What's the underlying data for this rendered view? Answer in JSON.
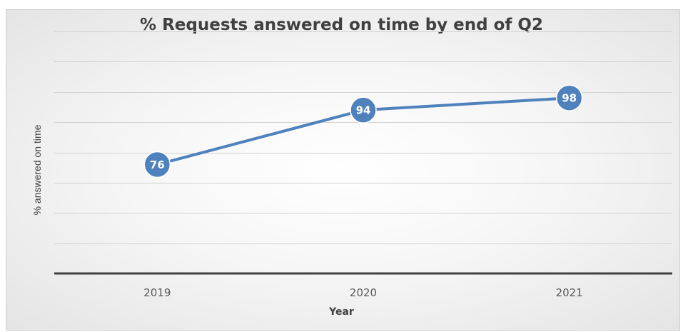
{
  "chart_data": {
    "type": "line",
    "title": "% Requests answered on time by end of Q2",
    "xlabel": "Year",
    "ylabel": "% answered on time",
    "categories": [
      "2019",
      "2020",
      "2021"
    ],
    "series": [
      {
        "values": [
          76,
          94,
          98
        ],
        "color": "#4f81bd"
      }
    ],
    "data_labels": [
      "76",
      "94",
      "98"
    ],
    "ylim": [
      40,
      120
    ],
    "gridline_step": 10,
    "grid": true,
    "legend": "none"
  }
}
